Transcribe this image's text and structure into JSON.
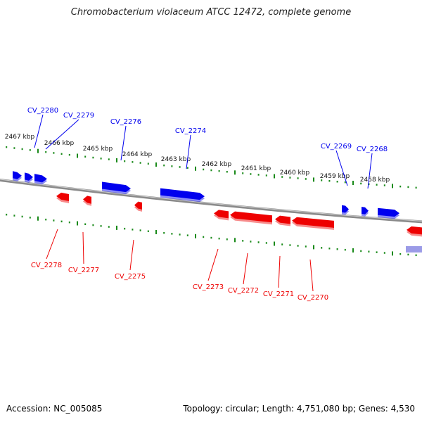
{
  "title": "Chromobacterium violaceum ATCC 12472, complete genome",
  "footer": {
    "accession": "Accession: NC_005085",
    "summary": "Topology: circular; Length: 4,751,080 bp; Genes: 4,530"
  },
  "colors": {
    "forward_gene": "#0000ee",
    "reverse_gene": "#ee0000",
    "tick": "#1a8a1a",
    "backbone": "#8a8a8a"
  },
  "scale_labels": [
    "2467 kbp",
    "2466 kbp",
    "2465 kbp",
    "2464 kbp",
    "2463 kbp",
    "2462 kbp",
    "2461 kbp",
    "2460 kbp",
    "2459 kbp",
    "2458 kbp"
  ],
  "forward_genes": [
    "CV_2280",
    "CV_2279",
    "CV_2276",
    "CV_2274",
    "CV_2269",
    "CV_2268"
  ],
  "reverse_genes": [
    "CV_2278",
    "CV_2277",
    "CV_2275",
    "CV_2273",
    "CV_2272",
    "CV_2271",
    "CV_2270"
  ]
}
